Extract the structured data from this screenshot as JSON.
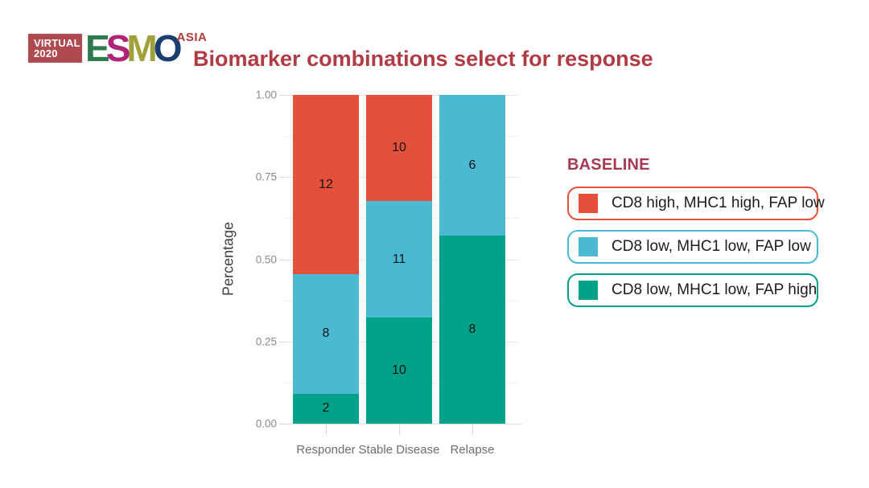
{
  "logo": {
    "badge_line1": "VIRTUAL",
    "badge_line2": "2020",
    "badge_bg": "#B04A50",
    "letters": [
      {
        "ch": "E",
        "color": "#2F7A4D"
      },
      {
        "ch": "S",
        "color": "#B02478"
      },
      {
        "ch": "M",
        "color": "#A0A13B"
      },
      {
        "ch": "O",
        "color": "#1C3E6E"
      }
    ],
    "suffix": "ASIA",
    "suffix_color": "#B43A35"
  },
  "title": {
    "text": "Biomarker combinations select for response",
    "color": "#B13B44"
  },
  "chart_data": {
    "type": "bar",
    "subtype": "stacked_normalized_percentage",
    "categories": [
      "Responder",
      "Stable Disease",
      "Relapse"
    ],
    "series": [
      {
        "name": "CD8 high, MHC1 high, FAP low",
        "color": "#E5503A",
        "values": [
          12,
          10,
          0
        ]
      },
      {
        "name": "CD8 low, MHC1 low, FAP low",
        "color": "#4CB9D3",
        "values": [
          8,
          11,
          6
        ]
      },
      {
        "name": "CD8 low, MHC1 low, FAP high",
        "color": "#00A189",
        "values": [
          2,
          10,
          8
        ]
      }
    ],
    "stack_order_bottom_to_top": [
      "CD8 low, MHC1 low, FAP high",
      "CD8 low, MHC1 low, FAP low",
      "CD8 high, MHC1 high, FAP low"
    ],
    "segment_labels_are": "patient counts",
    "title": "Biomarker combinations select for response",
    "xlabel": "",
    "ylabel": "Percentage",
    "ylim": [
      0,
      1
    ],
    "yticks": [
      {
        "value": 0.0,
        "label": "0.00"
      },
      {
        "value": 0.25,
        "label": "0.25"
      },
      {
        "value": 0.5,
        "label": "0.50"
      },
      {
        "value": 0.75,
        "label": "0.75"
      },
      {
        "value": 1.0,
        "label": "1.00"
      }
    ],
    "grid": "horizontal major + minor (0.125 steps)",
    "legend_position": "right"
  },
  "legend": {
    "title": "BASELINE",
    "title_color": "#A73A52",
    "items": [
      {
        "label": "CD8 high, MHC1 high, FAP low",
        "color": "#E5503A",
        "swatch": "red-square"
      },
      {
        "label": "CD8 low, MHC1 low, FAP low",
        "color": "#4CB9D3",
        "swatch": "blue-square"
      },
      {
        "label": "CD8 low, MHC1 low, FAP high",
        "color": "#00A189",
        "swatch": "green-square"
      }
    ]
  }
}
